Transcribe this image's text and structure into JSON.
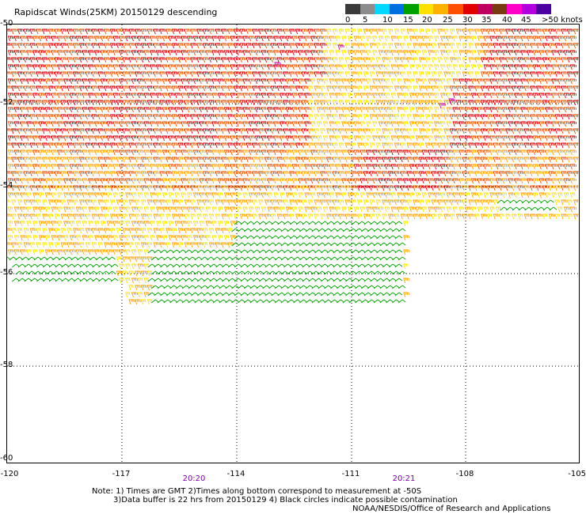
{
  "title": "Rapidscat Winds(25KM) 20150129 descending",
  "colorbar": {
    "labels": [
      "0",
      "5",
      "10",
      "15",
      "20",
      "25",
      "30",
      "35",
      "40",
      "45",
      ">50 knots"
    ],
    "colors": [
      "#3a3a3a",
      "#8c8c8c",
      "#00d8ff",
      "#0070e0",
      "#00a000",
      "#ffe000",
      "#ffb000",
      "#ff5000",
      "#e00000",
      "#c00060",
      "#7a3a10",
      "#ff00c8",
      "#b000e0",
      "#4c00a0"
    ]
  },
  "map": {
    "lat_labels": [
      "-50",
      "-52",
      "-54",
      "-56",
      "-58",
      "-60"
    ],
    "lon_labels": [
      "-120",
      "-117",
      "-114",
      "-111",
      "-108",
      "-105"
    ],
    "time_labels": [
      "20:20",
      "20:21"
    ],
    "lon_range": [
      -120,
      -105
    ],
    "lat_range": [
      -50,
      -60
    ],
    "grid_lines": true
  },
  "notes": {
    "line1": "Note: 1) Times are GMT 2)Times along bottom correspond to measurement at -50S",
    "line2": "3)Data buffer is 22 hrs from 20150129 4) Black circles indicate possible contamination",
    "credit": "NOAA/NESDIS/Office of Research and Applications"
  },
  "wind_colors": {
    "green": "#00a000",
    "yellow": "#ffe000",
    "orange": "#ffa000",
    "dark_orange": "#e05000",
    "red": "#d00000",
    "magenta": "#c000a0"
  }
}
